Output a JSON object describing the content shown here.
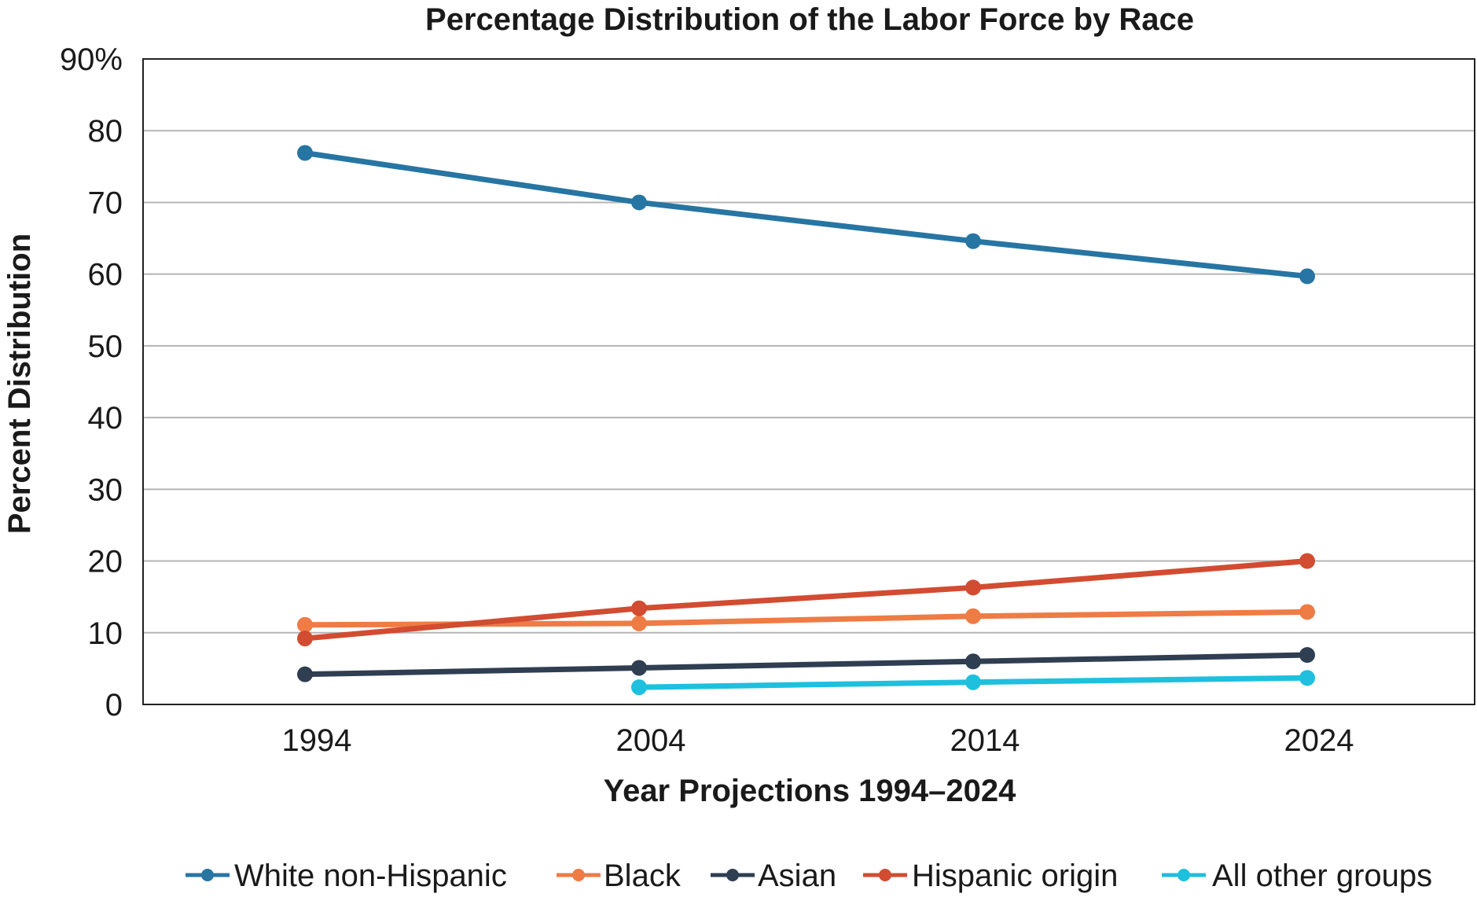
{
  "chart_data": {
    "type": "line",
    "title": "Percentage Distribution of the Labor Force by Race",
    "xlabel": "Year Projections 1994–2024",
    "ylabel": "Percent Distribution",
    "categories": [
      "1994",
      "2004",
      "2014",
      "2024"
    ],
    "ylim": [
      0,
      90
    ],
    "yticks": [
      {
        "value": 0,
        "label": "0"
      },
      {
        "value": 10,
        "label": "10"
      },
      {
        "value": 20,
        "label": "20"
      },
      {
        "value": 30,
        "label": "30"
      },
      {
        "value": 40,
        "label": "40"
      },
      {
        "value": 50,
        "label": "50"
      },
      {
        "value": 60,
        "label": "60"
      },
      {
        "value": 70,
        "label": "70"
      },
      {
        "value": 80,
        "label": "80"
      },
      {
        "value": 90,
        "label": "90%"
      }
    ],
    "grid": true,
    "legend_position": "bottom",
    "series": [
      {
        "name": "White non-Hispanic",
        "color": "#2775a3",
        "values": [
          76.9,
          70.0,
          64.6,
          59.7
        ]
      },
      {
        "name": "Black",
        "color": "#ef7b45",
        "values": [
          11.1,
          11.3,
          12.3,
          12.9
        ]
      },
      {
        "name": "Asian",
        "color": "#2f3e51",
        "values": [
          4.2,
          5.1,
          6.0,
          6.9
        ]
      },
      {
        "name": "Hispanic origin",
        "color": "#d24c31",
        "values": [
          9.2,
          13.4,
          16.3,
          20.0
        ]
      },
      {
        "name": "All other groups",
        "color": "#1ec0de",
        "values": [
          null,
          2.4,
          3.1,
          3.7
        ]
      }
    ]
  }
}
